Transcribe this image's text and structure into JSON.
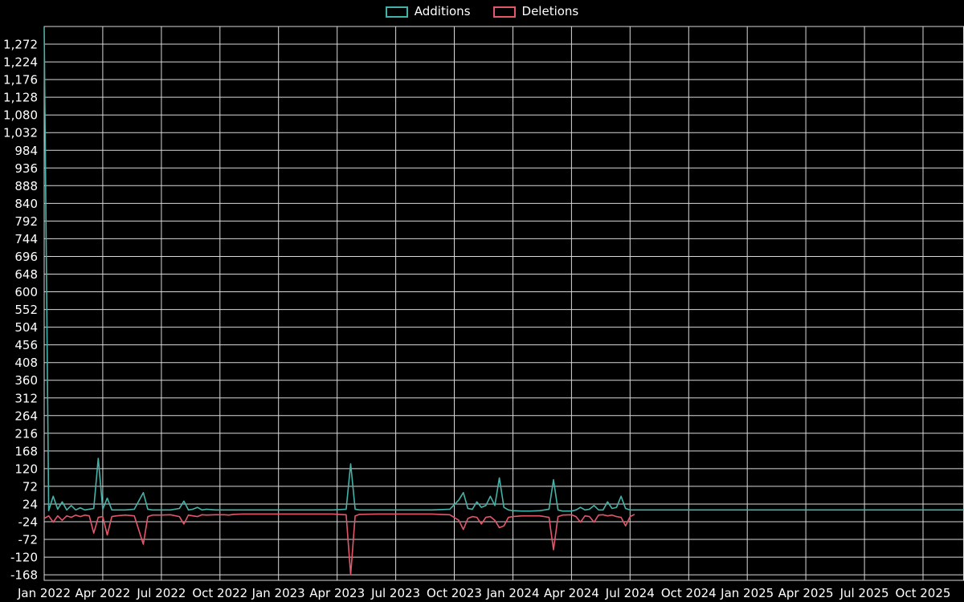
{
  "page": {
    "background": "#000000",
    "text_color": "#ffffff"
  },
  "legend": {
    "items": [
      {
        "label": "Additions",
        "color": "#44b2a8"
      },
      {
        "label": "Deletions",
        "color": "#e4566a"
      }
    ]
  },
  "chart_data": {
    "type": "line",
    "title": "",
    "grid": true,
    "legend_position": "top-center",
    "background": "#000000",
    "grid_color": "#d9d9d9",
    "text_color": "#ffffff",
    "x_axis": {
      "range_weeks": [
        0,
        204
      ],
      "tick_weeks": [
        0,
        13,
        26,
        39,
        52,
        65,
        78,
        91,
        104,
        117,
        130,
        143,
        156,
        169,
        182,
        195
      ],
      "tick_labels": [
        "Jan 2022",
        "Apr 2022",
        "Jul 2022",
        "Oct 2022",
        "Jan 2023",
        "Apr 2023",
        "Jul 2023",
        "Oct 2023",
        "Jan 2024",
        "Apr 2024",
        "Jul 2024",
        "Oct 2024",
        "Jan 2025",
        "Apr 2025",
        "Jul 2025",
        "Oct 2025"
      ]
    },
    "y_axis": {
      "range": [
        -183,
        1320
      ],
      "tick_values": [
        -168,
        -120,
        -72,
        -24,
        24,
        72,
        120,
        168,
        216,
        264,
        312,
        360,
        408,
        456,
        504,
        552,
        600,
        648,
        696,
        744,
        792,
        840,
        888,
        936,
        984,
        1032,
        1080,
        1128,
        1176,
        1224,
        1272
      ],
      "tick_labels": [
        "-168",
        "-120",
        "-72",
        "-24",
        "24",
        "72",
        "120",
        "168",
        "216",
        "264",
        "312",
        "360",
        "408",
        "456",
        "504",
        "552",
        "600",
        "648",
        "696",
        "744",
        "792",
        "840",
        "888",
        "936",
        "984",
        "1,032",
        "1,080",
        "1,128",
        "1,176",
        "1,224",
        "1,272"
      ]
    },
    "series": [
      {
        "name": "Additions",
        "color": "#44b2a8",
        "points": [
          [
            0,
            1317
          ],
          [
            1,
            6
          ],
          [
            2,
            45
          ],
          [
            3,
            10
          ],
          [
            4,
            30
          ],
          [
            5,
            8
          ],
          [
            6,
            20
          ],
          [
            7,
            8
          ],
          [
            8,
            14
          ],
          [
            9,
            8
          ],
          [
            10,
            10
          ],
          [
            11,
            12
          ],
          [
            12,
            148
          ],
          [
            13,
            10
          ],
          [
            14,
            40
          ],
          [
            15,
            8
          ],
          [
            16,
            8
          ],
          [
            18,
            8
          ],
          [
            20,
            10
          ],
          [
            22,
            55
          ],
          [
            23,
            10
          ],
          [
            24,
            8
          ],
          [
            26,
            8
          ],
          [
            28,
            8
          ],
          [
            30,
            12
          ],
          [
            31,
            32
          ],
          [
            32,
            8
          ],
          [
            33,
            10
          ],
          [
            34,
            15
          ],
          [
            35,
            8
          ],
          [
            36,
            10
          ],
          [
            38,
            8
          ],
          [
            40,
            8
          ],
          [
            44,
            8
          ],
          [
            48,
            8
          ],
          [
            52,
            8
          ],
          [
            56,
            8
          ],
          [
            60,
            8
          ],
          [
            64,
            8
          ],
          [
            67,
            10
          ],
          [
            68,
            133
          ],
          [
            69,
            10
          ],
          [
            70,
            8
          ],
          [
            74,
            8
          ],
          [
            78,
            8
          ],
          [
            82,
            8
          ],
          [
            86,
            8
          ],
          [
            90,
            10
          ],
          [
            92,
            35
          ],
          [
            93,
            55
          ],
          [
            94,
            12
          ],
          [
            95,
            10
          ],
          [
            96,
            30
          ],
          [
            97,
            15
          ],
          [
            98,
            20
          ],
          [
            99,
            45
          ],
          [
            100,
            20
          ],
          [
            101,
            95
          ],
          [
            102,
            15
          ],
          [
            103,
            8
          ],
          [
            104,
            6
          ],
          [
            106,
            5
          ],
          [
            108,
            5
          ],
          [
            110,
            6
          ],
          [
            112,
            10
          ],
          [
            113,
            90
          ],
          [
            114,
            8
          ],
          [
            115,
            5
          ],
          [
            117,
            5
          ],
          [
            118,
            8
          ],
          [
            119,
            15
          ],
          [
            120,
            8
          ],
          [
            121,
            10
          ],
          [
            122,
            20
          ],
          [
            123,
            8
          ],
          [
            124,
            8
          ],
          [
            125,
            30
          ],
          [
            126,
            12
          ],
          [
            127,
            15
          ],
          [
            128,
            45
          ],
          [
            129,
            12
          ],
          [
            130,
            8
          ],
          [
            132,
            8
          ],
          [
            136,
            8
          ],
          [
            140,
            8
          ],
          [
            150,
            8
          ],
          [
            160,
            8
          ],
          [
            170,
            8
          ],
          [
            180,
            8
          ],
          [
            190,
            8
          ],
          [
            200,
            8
          ],
          [
            204,
            8
          ]
        ]
      },
      {
        "name": "Deletions",
        "color": "#e4566a",
        "points": [
          [
            0,
            -15
          ],
          [
            1,
            -8
          ],
          [
            2,
            -25
          ],
          [
            3,
            -8
          ],
          [
            4,
            -20
          ],
          [
            5,
            -8
          ],
          [
            6,
            -12
          ],
          [
            7,
            -6
          ],
          [
            8,
            -10
          ],
          [
            9,
            -6
          ],
          [
            10,
            -8
          ],
          [
            11,
            -55
          ],
          [
            12,
            -12
          ],
          [
            13,
            -10
          ],
          [
            14,
            -60
          ],
          [
            15,
            -10
          ],
          [
            16,
            -8
          ],
          [
            18,
            -6
          ],
          [
            20,
            -8
          ],
          [
            22,
            -85
          ],
          [
            23,
            -10
          ],
          [
            24,
            -6
          ],
          [
            26,
            -6
          ],
          [
            28,
            -5
          ],
          [
            30,
            -10
          ],
          [
            31,
            -30
          ],
          [
            32,
            -6
          ],
          [
            33,
            -8
          ],
          [
            34,
            -10
          ],
          [
            35,
            -5
          ],
          [
            36,
            -6
          ],
          [
            38,
            -5
          ],
          [
            40,
            -5
          ],
          [
            41,
            -6
          ],
          [
            42,
            -4
          ],
          [
            44,
            -3
          ],
          [
            48,
            -3
          ],
          [
            52,
            -3
          ],
          [
            56,
            -3
          ],
          [
            60,
            -3
          ],
          [
            64,
            -3
          ],
          [
            67,
            -5
          ],
          [
            68,
            -168
          ],
          [
            69,
            -8
          ],
          [
            70,
            -4
          ],
          [
            74,
            -3
          ],
          [
            78,
            -3
          ],
          [
            82,
            -3
          ],
          [
            86,
            -3
          ],
          [
            90,
            -5
          ],
          [
            92,
            -20
          ],
          [
            93,
            -45
          ],
          [
            94,
            -15
          ],
          [
            95,
            -10
          ],
          [
            96,
            -12
          ],
          [
            97,
            -30
          ],
          [
            98,
            -12
          ],
          [
            99,
            -10
          ],
          [
            100,
            -20
          ],
          [
            101,
            -40
          ],
          [
            102,
            -35
          ],
          [
            103,
            -12
          ],
          [
            104,
            -10
          ],
          [
            106,
            -8
          ],
          [
            108,
            -8
          ],
          [
            110,
            -8
          ],
          [
            112,
            -12
          ],
          [
            113,
            -100
          ],
          [
            114,
            -10
          ],
          [
            115,
            -6
          ],
          [
            117,
            -5
          ],
          [
            118,
            -10
          ],
          [
            119,
            -25
          ],
          [
            120,
            -8
          ],
          [
            121,
            -10
          ],
          [
            122,
            -25
          ],
          [
            123,
            -6
          ],
          [
            124,
            -5
          ],
          [
            125,
            -8
          ],
          [
            126,
            -6
          ],
          [
            127,
            -10
          ],
          [
            128,
            -12
          ],
          [
            129,
            -35
          ],
          [
            130,
            -10
          ],
          [
            131,
            -4
          ]
        ]
      }
    ]
  }
}
